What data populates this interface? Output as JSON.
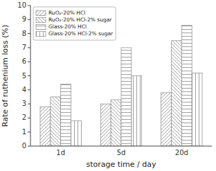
{
  "chart_data": {
    "type": "bar",
    "categories": [
      "1d",
      "5d",
      "20d"
    ],
    "series": [
      {
        "name": "RuO₂-20% HCl",
        "color": "#888888",
        "values": [
          2.8,
          3.0,
          3.8
        ]
      },
      {
        "name": "RuO₂-20% HCl-2% sugar",
        "color": "#888888",
        "values": [
          3.5,
          3.3,
          7.5
        ]
      },
      {
        "name": "Glass-20% HCl",
        "color": "#888888",
        "values": [
          4.4,
          7.0,
          8.6
        ]
      },
      {
        "name": "Glass-20% HCl-2% sugar",
        "color": "#888888",
        "values": [
          1.8,
          5.0,
          5.2
        ]
      }
    ],
    "xlabel": "storage time / day",
    "ylabel": "Rate of ruthenium loss (%)",
    "ylim": [
      0,
      10
    ],
    "yticks": [
      0,
      1,
      2,
      3,
      4,
      5,
      6,
      7,
      8,
      9,
      10
    ],
    "grid": false,
    "legend": "upper left"
  }
}
